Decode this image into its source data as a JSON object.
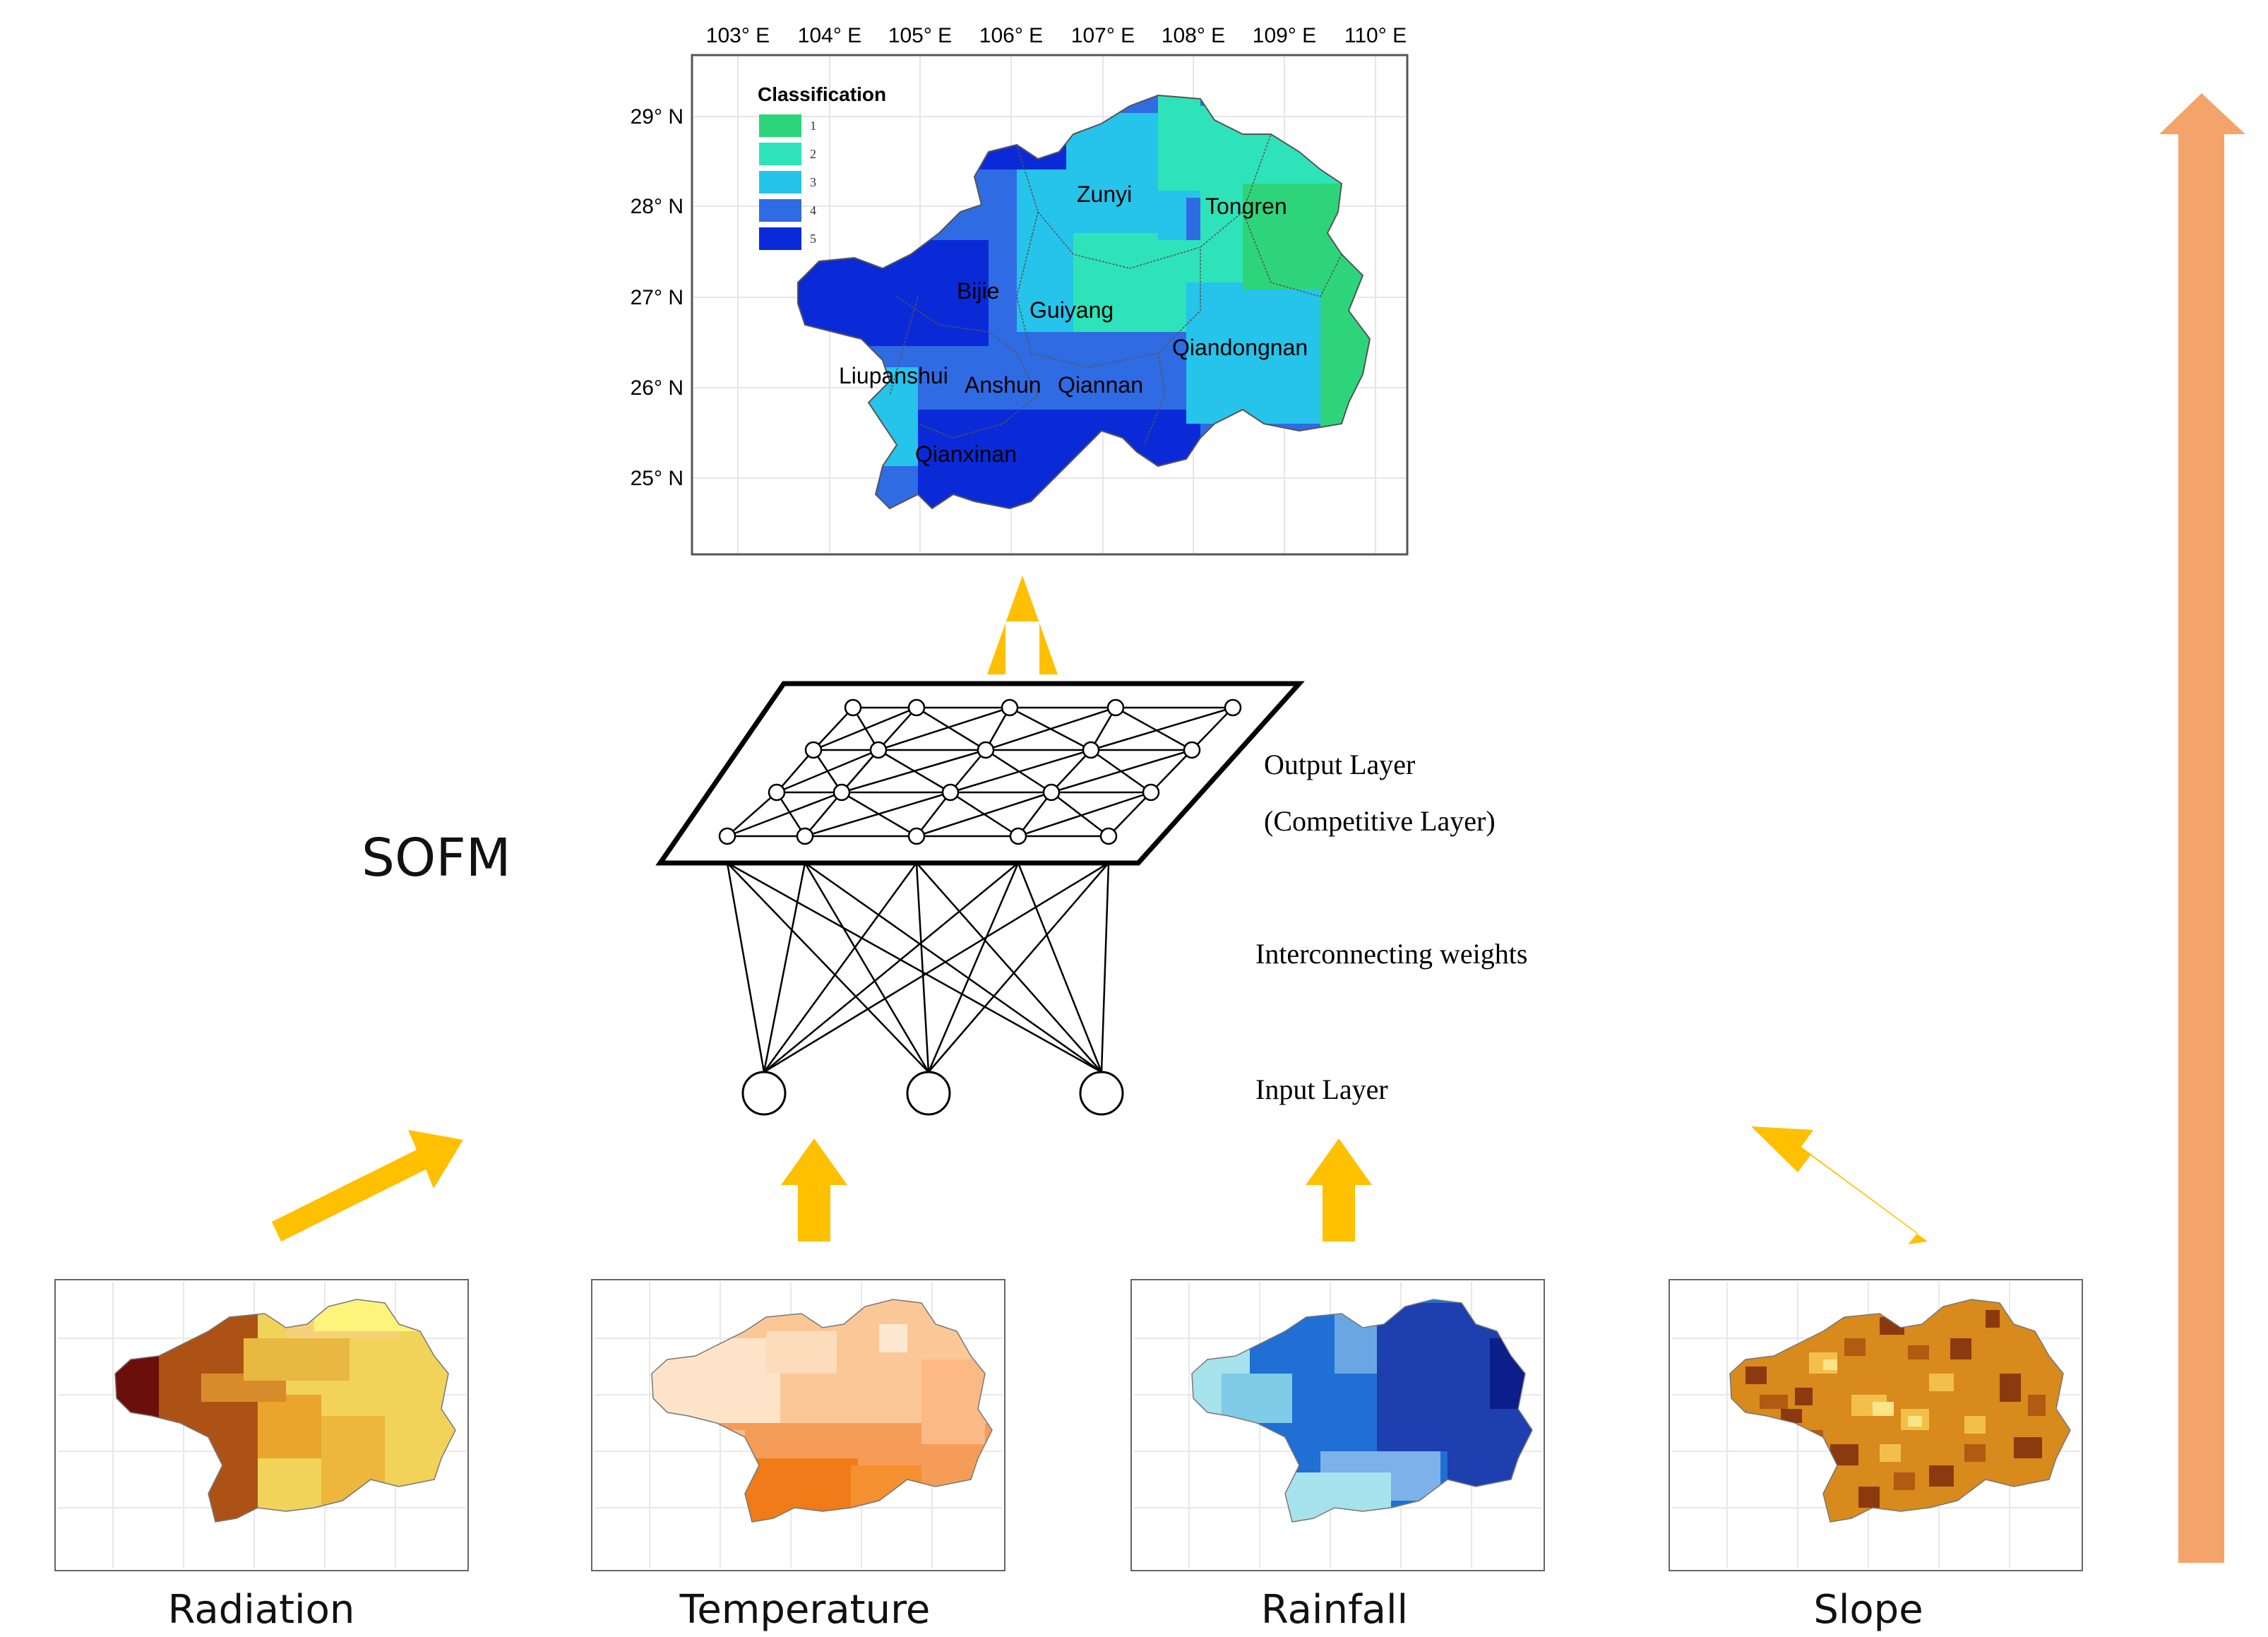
{
  "main_map": {
    "legend_title": "Classification",
    "legend_items": [
      {
        "label": "1",
        "color": "#2ed47a"
      },
      {
        "label": "2",
        "color": "#2ee3b9"
      },
      {
        "label": "3",
        "color": "#26c3ea"
      },
      {
        "label": "4",
        "color": "#2f6be3"
      },
      {
        "label": "5",
        "color": "#0a2ad8"
      }
    ],
    "lon_ticks": [
      "103° E",
      "104° E",
      "105° E",
      "106° E",
      "107° E",
      "108° E",
      "109° E",
      "110° E"
    ],
    "lat_ticks": [
      "29° N",
      "28° N",
      "27° N",
      "26° N",
      "25° N"
    ],
    "regions": [
      "Zunyi",
      "Tongren",
      "Bijie",
      "Guiyang",
      "Qiandongnan",
      "Liupanshui",
      "Anshun",
      "Qiannan",
      "Qianxinan"
    ]
  },
  "sofm": {
    "label": "SOFM",
    "output_layer": "Output Layer",
    "competitive_layer": "(Competitive Layer)",
    "weights": "Interconnecting weights",
    "input_layer": "Input Layer"
  },
  "inputs": [
    {
      "label": "Radiation"
    },
    {
      "label": "Temperature"
    },
    {
      "label": "Rainfall"
    },
    {
      "label": "Slope"
    }
  ],
  "colors": {
    "arrow_yellow": "#ffc000",
    "arrow_orange": "#f4a46a"
  }
}
